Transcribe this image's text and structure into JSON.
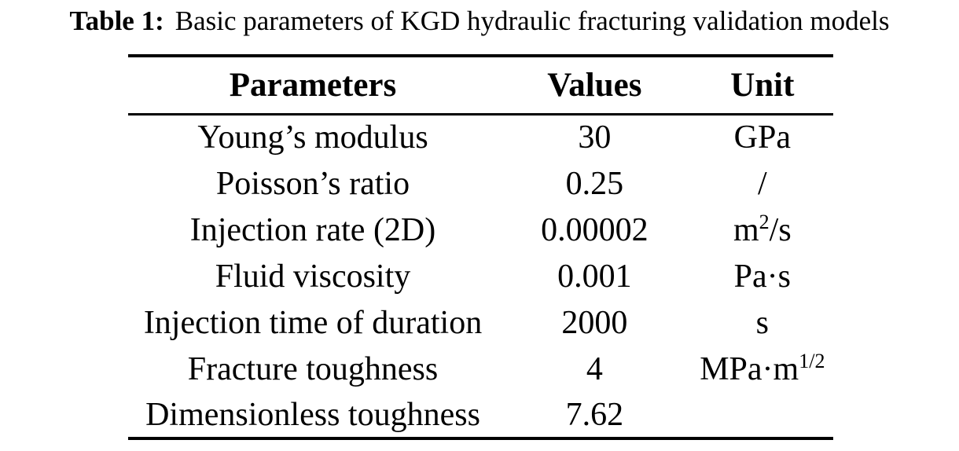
{
  "caption": {
    "label": "Table 1:",
    "text": "Basic parameters of KGD hydraulic fracturing validation models"
  },
  "table": {
    "headers": {
      "parameters": "Parameters",
      "values": "Values",
      "unit": "Unit"
    },
    "rows": [
      {
        "parameter": "Young’s modulus",
        "value": "30",
        "unit": "GPa"
      },
      {
        "parameter": "Poisson’s ratio",
        "value": "0.25",
        "unit": "/"
      },
      {
        "parameter": "Injection rate (2D)",
        "value": "0.00002",
        "unit": "m^{2}/s"
      },
      {
        "parameter": "Fluid viscosity",
        "value": "0.001",
        "unit": "Pa·s"
      },
      {
        "parameter": "Injection time of duration",
        "value": "2000",
        "unit": "s"
      },
      {
        "parameter": "Fracture toughness",
        "value": "4",
        "unit": "MPa·m^{1/2}"
      },
      {
        "parameter": "Dimensionless toughness",
        "value": "7.62",
        "unit": ""
      }
    ],
    "text_color": "#000000",
    "background_color": "#ffffff"
  }
}
